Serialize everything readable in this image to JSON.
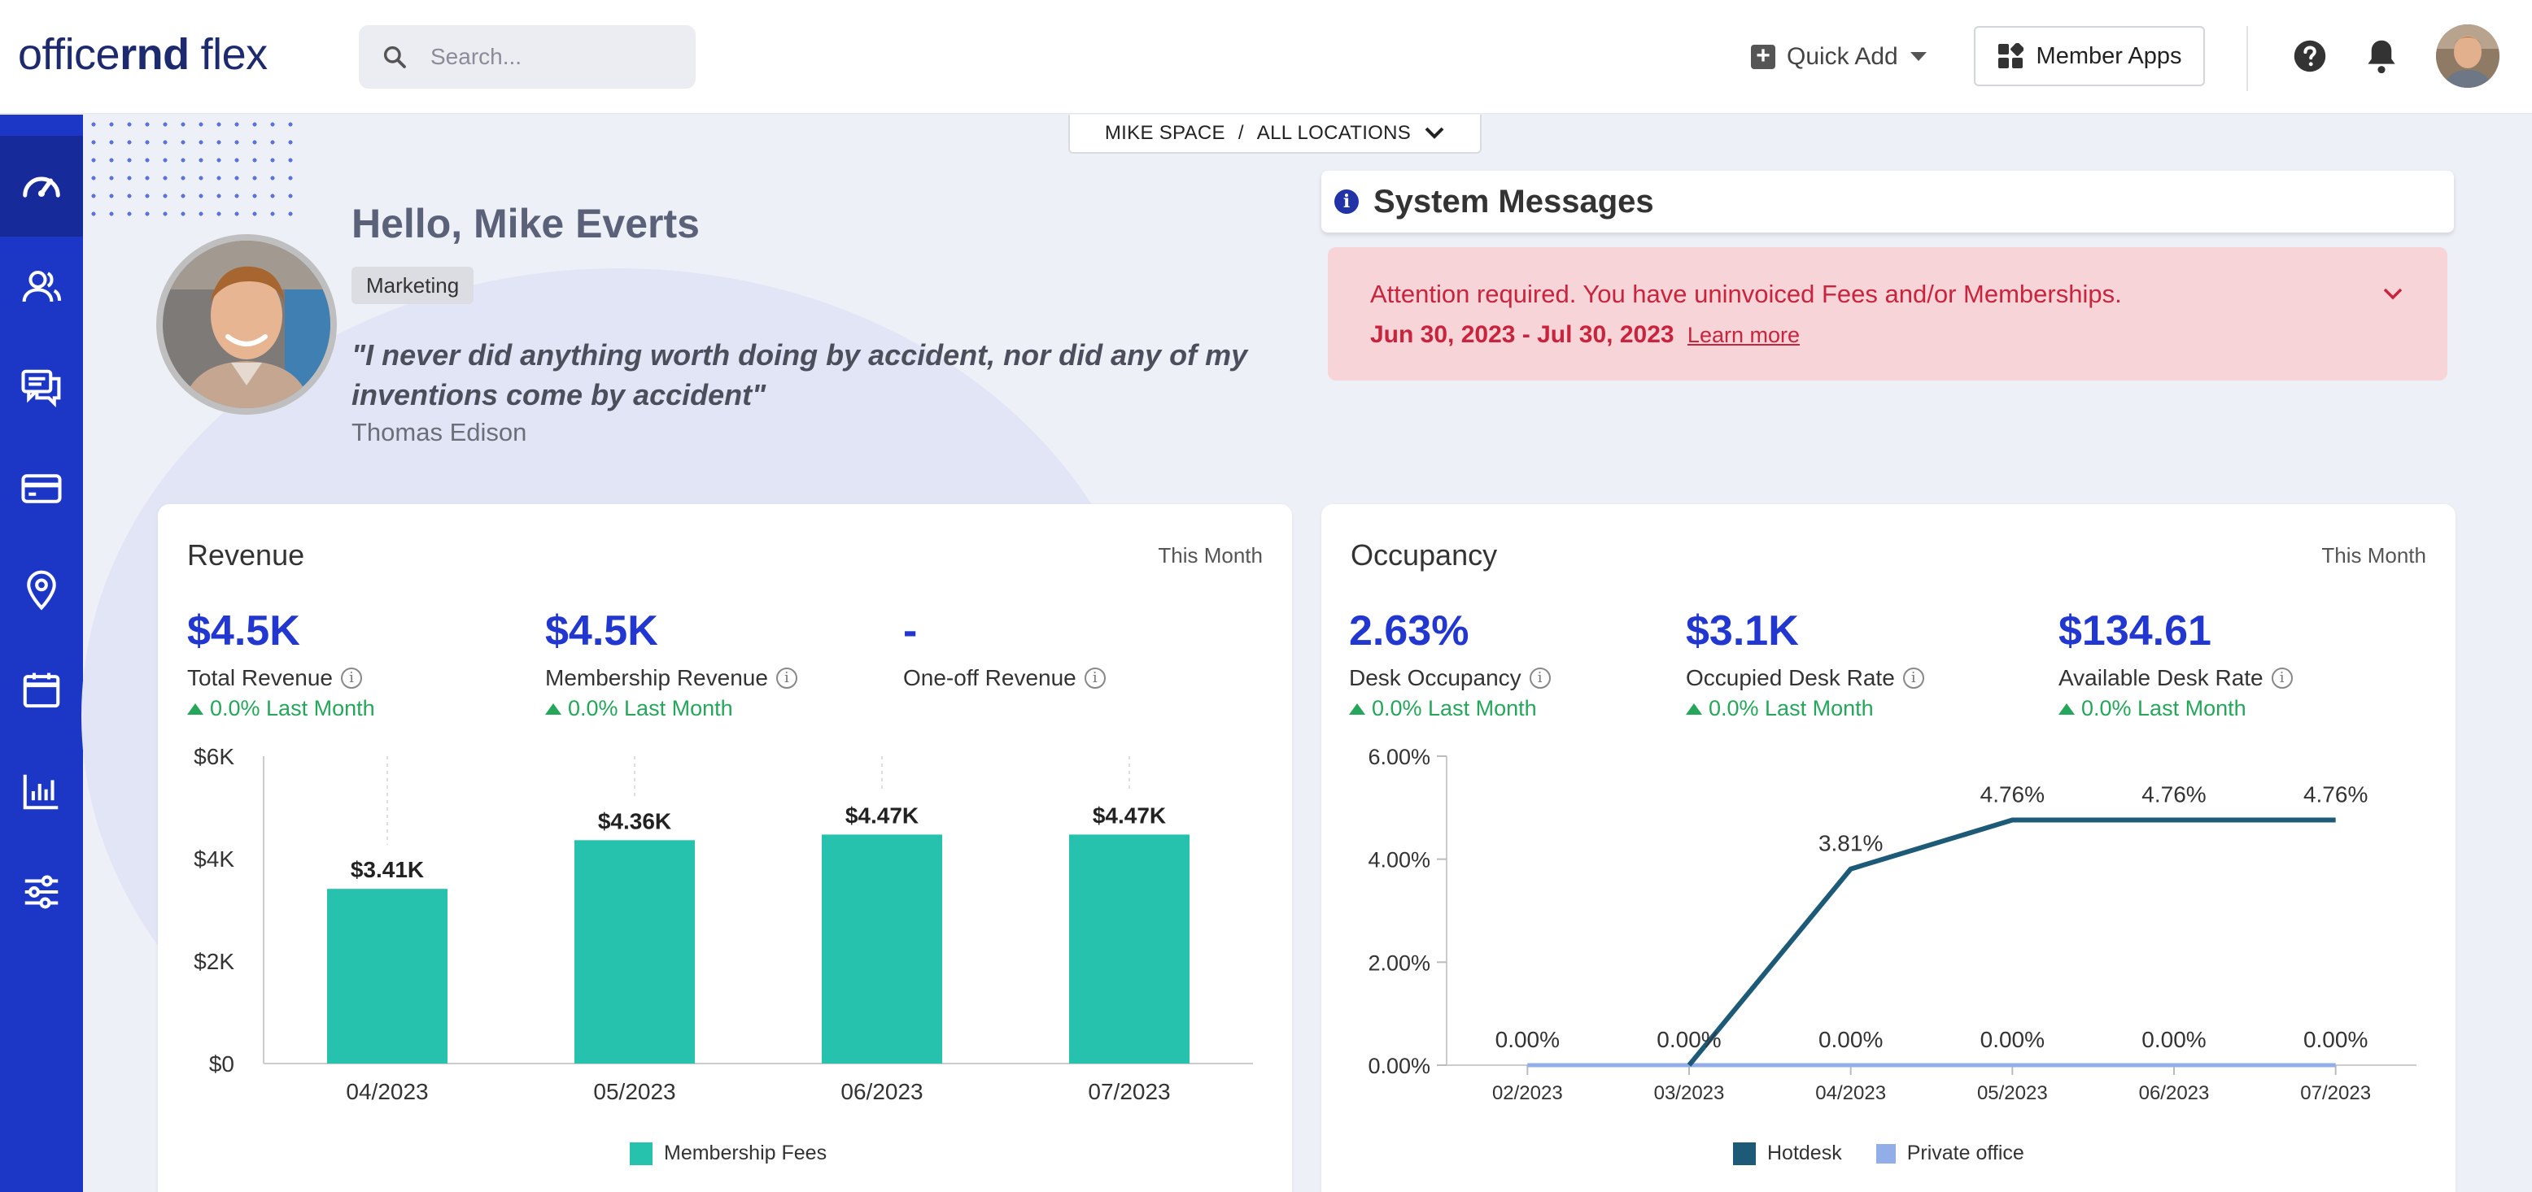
{
  "app": {
    "logo_a": "office",
    "logo_b": "rnd",
    "logo_c": "flex"
  },
  "search": {
    "placeholder": "Search..."
  },
  "header": {
    "quick_add_label": "Quick Add",
    "member_apps_label": "Member Apps"
  },
  "sidebar": {
    "items": [
      {
        "icon": "dashboard-icon",
        "active": true
      },
      {
        "icon": "members-icon"
      },
      {
        "icon": "messages-icon"
      },
      {
        "icon": "billing-card-icon"
      },
      {
        "icon": "location-pin-icon"
      },
      {
        "icon": "calendar-icon"
      },
      {
        "icon": "reports-chart-icon"
      },
      {
        "icon": "settings-sliders-icon"
      }
    ]
  },
  "location": {
    "space": "MIKE SPACE",
    "separator": "/",
    "scope": "ALL LOCATIONS"
  },
  "greeting": {
    "hello": "Hello, Mike Everts",
    "tag": "Marketing",
    "quote": "\"I never did anything worth doing by accident, nor did any of my inventions come by accident\"",
    "author": "Thomas Edison"
  },
  "system_messages": {
    "title": "System Messages",
    "alert_text": "Attention required. You have uninvoiced Fees and/or Memberships.",
    "alert_dates": "Jun 30, 2023 - Jul 30, 2023",
    "learn_more": "Learn more"
  },
  "colors": {
    "accent": "#2236d0",
    "sidebar": "#1c37c6",
    "bar": "#26c2ae",
    "hotdesk": "#1d5a78",
    "private_office": "#91aee8",
    "trend_up": "#26a65b",
    "alert_text": "#c9243d"
  },
  "revenue": {
    "title": "Revenue",
    "period": "This Month",
    "kpis": [
      {
        "value": "$4.5K",
        "label": "Total Revenue",
        "trend": "0.0% Last Month"
      },
      {
        "value": "$4.5K",
        "label": "Membership Revenue",
        "trend": "0.0% Last Month"
      },
      {
        "value": "-",
        "label": "One-off Revenue",
        "trend": ""
      }
    ],
    "legend": "Membership Fees"
  },
  "occupancy": {
    "title": "Occupancy",
    "period": "This Month",
    "kpis": [
      {
        "value": "2.63%",
        "label": "Desk Occupancy",
        "trend": "0.0% Last Month"
      },
      {
        "value": "$3.1K",
        "label": "Occupied Desk Rate",
        "trend": "0.0% Last Month"
      },
      {
        "value": "$134.61",
        "label": "Available Desk Rate",
        "trend": "0.0% Last Month"
      }
    ],
    "legend": [
      "Hotdesk",
      "Private office"
    ]
  },
  "chart_data": [
    {
      "type": "bar",
      "categories": [
        "04/2023",
        "05/2023",
        "06/2023",
        "07/2023"
      ],
      "series": [
        {
          "name": "Membership Fees",
          "values": [
            3.41,
            4.36,
            4.47,
            4.47
          ]
        }
      ],
      "data_labels": [
        "$3.41K",
        "$4.36K",
        "$4.47K",
        "$4.47K"
      ],
      "yticks": [
        "$0",
        "$2K",
        "$4K",
        "$6K"
      ],
      "ylim": [
        0,
        6
      ],
      "legend": "bottom"
    },
    {
      "type": "line",
      "categories": [
        "02/2023",
        "03/2023",
        "04/2023",
        "05/2023",
        "06/2023",
        "07/2023"
      ],
      "series": [
        {
          "name": "Hotdesk",
          "values": [
            null,
            0.0,
            3.81,
            4.76,
            4.76,
            4.76
          ],
          "labels": [
            "",
            "",
            "3.81%",
            "4.76%",
            "4.76%",
            "4.76%"
          ]
        },
        {
          "name": "Private office",
          "values": [
            0.0,
            0.0,
            0.0,
            0.0,
            0.0,
            0.0
          ],
          "labels": [
            "0.00%",
            "0.00%",
            "0.00%",
            "0.00%",
            "0.00%",
            "0.00%"
          ]
        }
      ],
      "yticks": [
        "0.00%",
        "2.00%",
        "4.00%",
        "6.00%"
      ],
      "ylim": [
        0,
        6
      ],
      "legend": "bottom"
    }
  ]
}
